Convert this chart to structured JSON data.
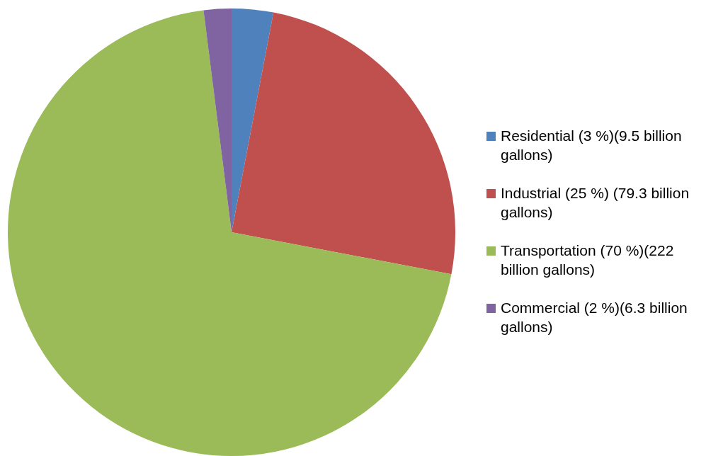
{
  "chart_data": {
    "type": "pie",
    "categories": [
      "Residential (3 %)(9.5 billion gallons)",
      "Industrial (25 %) (79.3 billion gallons)",
      "Transportation (70 %)(222 billion gallons)",
      "Commercial (2 %)(6.3 billion gallons)"
    ],
    "values": [
      3,
      25,
      70,
      2
    ],
    "colors": [
      "#4f81bd",
      "#c0504d",
      "#9bbb59",
      "#8064a2"
    ],
    "legend": "right"
  }
}
